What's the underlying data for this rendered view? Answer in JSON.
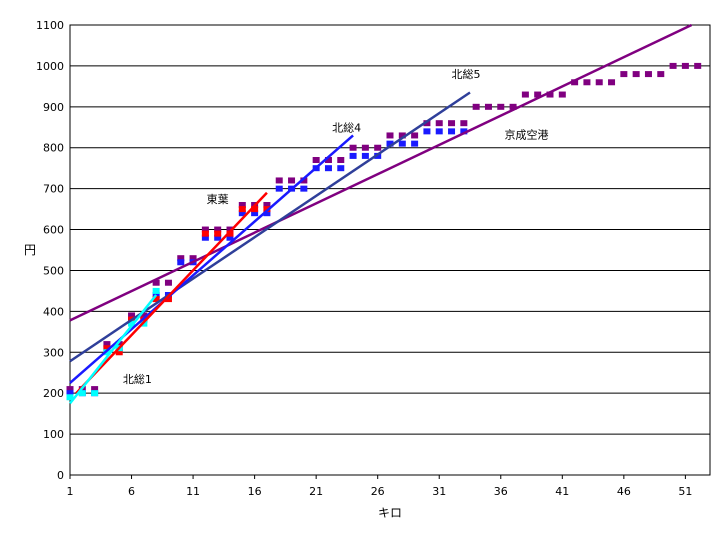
{
  "chart_data": {
    "type": "scatter",
    "xlabel": "キロ",
    "ylabel": "円",
    "xlim": [
      1,
      53
    ],
    "ylim": [
      0,
      1100
    ],
    "x_ticks": [
      1,
      6,
      11,
      16,
      21,
      26,
      31,
      36,
      41,
      46,
      51
    ],
    "y_ticks": [
      0,
      100,
      200,
      300,
      400,
      500,
      600,
      700,
      800,
      900,
      1000,
      1100
    ],
    "grid": "horizontal",
    "series": [
      {
        "name": "京成空港",
        "color": "#800080",
        "x": [
          1,
          2,
          3,
          4,
          5,
          6,
          7,
          8,
          9,
          10,
          11,
          12,
          13,
          14,
          15,
          16,
          17,
          18,
          19,
          20,
          21,
          22,
          23,
          24,
          25,
          26,
          27,
          28,
          29,
          30,
          31,
          32,
          33,
          34,
          35,
          36,
          37,
          38,
          39,
          40,
          41,
          42,
          43,
          44,
          45,
          46,
          47,
          48,
          49,
          50,
          51,
          52
        ],
        "y": [
          210,
          210,
          210,
          320,
          320,
          390,
          390,
          470,
          470,
          530,
          530,
          600,
          600,
          600,
          660,
          660,
          660,
          720,
          720,
          720,
          770,
          770,
          770,
          800,
          800,
          800,
          830,
          830,
          830,
          860,
          860,
          860,
          860,
          900,
          900,
          900,
          900,
          930,
          930,
          930,
          930,
          960,
          960,
          960,
          960,
          980,
          980,
          980,
          980,
          1000,
          1000,
          1000
        ]
      },
      {
        "name": "北総4",
        "color": "#1a1aff",
        "x": [
          1,
          2,
          3,
          4,
          5,
          6,
          7,
          8,
          9,
          10,
          11,
          12,
          13,
          14,
          15,
          16,
          17,
          18,
          19,
          20,
          21,
          22,
          23,
          24,
          25,
          26,
          27,
          28,
          29,
          30,
          31,
          32,
          33
        ],
        "y": [
          200,
          200,
          200,
          310,
          310,
          380,
          380,
          440,
          440,
          520,
          520,
          580,
          580,
          580,
          640,
          640,
          640,
          700,
          700,
          700,
          750,
          750,
          750,
          780,
          780,
          780,
          810,
          810,
          810,
          840,
          840,
          840,
          840
        ]
      },
      {
        "name": "東葉",
        "color": "#ff0000",
        "x": [
          4,
          5,
          6,
          7,
          8,
          9,
          12,
          13,
          14,
          15,
          16,
          17
        ],
        "y": [
          310,
          300,
          380,
          380,
          430,
          430,
          590,
          590,
          590,
          650,
          650,
          650
        ]
      },
      {
        "name": "北総1",
        "color": "#00ffff",
        "x": [
          1,
          2,
          3,
          4,
          5,
          6,
          7,
          8
        ],
        "y": [
          190,
          200,
          200,
          300,
          310,
          370,
          370,
          450
        ]
      }
    ],
    "trend_lines": [
      {
        "name": "京成空港",
        "color": "#800080",
        "x": [
          1,
          51.5
        ],
        "y": [
          378,
          1100
        ]
      },
      {
        "name": "北総5",
        "color": "#2f3f9a",
        "x": [
          1,
          33.5
        ],
        "y": [
          278,
          935
        ]
      },
      {
        "name": "北総4",
        "color": "#1a1aff",
        "x": [
          1,
          24
        ],
        "y": [
          225,
          830
        ]
      },
      {
        "name": "東葉",
        "color": "#ff0000",
        "x": [
          1.5,
          17
        ],
        "y": [
          200,
          690
        ]
      },
      {
        "name": "北総1",
        "color": "#00ffff",
        "x": [
          1,
          8
        ],
        "y": [
          175,
          440
        ]
      }
    ],
    "annotations": [
      {
        "text": "北総1",
        "x": 5.3,
        "y": 225
      },
      {
        "text": "東葉",
        "x": 12.1,
        "y": 665
      },
      {
        "text": "北総4",
        "x": 22.3,
        "y": 840
      },
      {
        "text": "北総5",
        "x": 32,
        "y": 970
      },
      {
        "text": "京成空港",
        "x": 36.3,
        "y": 822
      }
    ]
  }
}
